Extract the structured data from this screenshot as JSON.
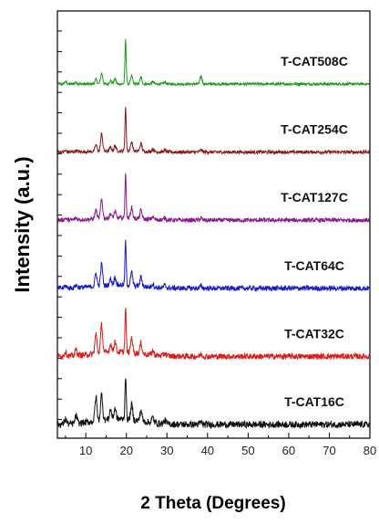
{
  "chart_data": {
    "type": "line",
    "xlabel": "2 Theta (Degrees)",
    "ylabel": "Intensity (a.u.)",
    "xlim": [
      3,
      80
    ],
    "x_ticks": [
      10,
      20,
      30,
      40,
      50,
      60,
      70,
      80
    ],
    "y_ticks_labeled": false,
    "grid": false,
    "legend": "none",
    "peaks_2theta": [
      5,
      7.6,
      12.5,
      13.9,
      16.1,
      17.2,
      19.8,
      21.3,
      23.6,
      26.5,
      29.5,
      38.4
    ],
    "series": [
      {
        "name": "T-CAT508C",
        "color": "#1a9a1a",
        "peak_heights": [
          0.05,
          0.04,
          0.1,
          0.25,
          0.08,
          0.12,
          1.0,
          0.18,
          0.15,
          0.05,
          0.04,
          0.18
        ]
      },
      {
        "name": "T-CAT254C",
        "color": "#8b1a1a",
        "peak_heights": [
          0.03,
          0.03,
          0.15,
          0.4,
          0.08,
          0.12,
          1.0,
          0.22,
          0.18,
          0.06,
          0.04,
          0.05
        ]
      },
      {
        "name": "T-CAT127C",
        "color": "#8b1a8b",
        "peak_heights": [
          0.04,
          0.04,
          0.2,
          0.45,
          0.1,
          0.15,
          1.0,
          0.25,
          0.2,
          0.06,
          0.05,
          0.05
        ]
      },
      {
        "name": "T-CAT64C",
        "color": "#1a1acc",
        "peak_heights": [
          0.05,
          0.06,
          0.3,
          0.5,
          0.15,
          0.18,
          1.0,
          0.3,
          0.22,
          0.08,
          0.06,
          0.05
        ]
      },
      {
        "name": "T-CAT32C",
        "color": "#dd1a1a",
        "peak_heights": [
          0.1,
          0.15,
          0.45,
          0.65,
          0.2,
          0.25,
          1.0,
          0.35,
          0.25,
          0.1,
          0.07,
          0.05
        ]
      },
      {
        "name": "T-CAT16C",
        "color": "#111111",
        "peak_heights": [
          0.12,
          0.18,
          0.55,
          0.6,
          0.22,
          0.25,
          1.0,
          0.35,
          0.25,
          0.12,
          0.08,
          0.05
        ]
      }
    ]
  }
}
